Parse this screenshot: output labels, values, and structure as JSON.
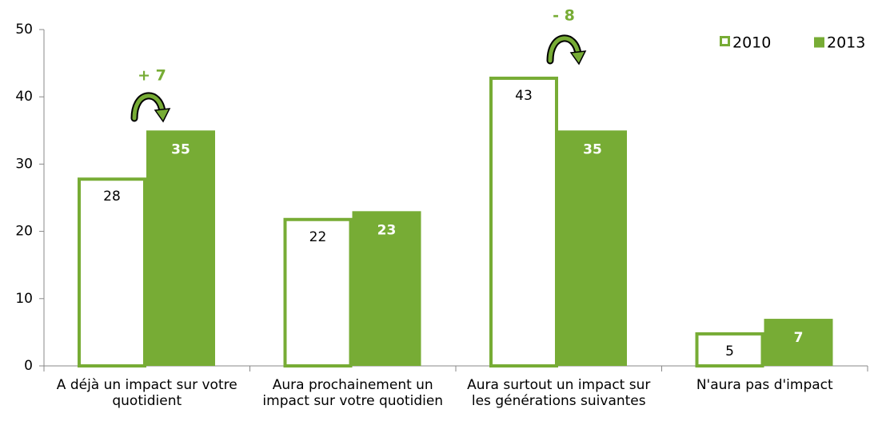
{
  "chart_data": {
    "type": "bar",
    "categories": [
      "A déjà un impact sur votre quotidient",
      "Aura prochainement un impact sur votre quotidien",
      "Aura surtout un impact sur les générations suivantes",
      "N'aura pas d'impact"
    ],
    "series": [
      {
        "name": "2010",
        "color": "#77ac35",
        "fill": "#ffffff",
        "values": [
          28,
          22,
          43,
          5
        ]
      },
      {
        "name": "2013",
        "color": "#77ac35",
        "fill": "#77ac35",
        "values": [
          35,
          23,
          35,
          7
        ]
      }
    ],
    "annotations": [
      "+ 7",
      "- 8"
    ],
    "ylim": [
      0,
      50
    ],
    "yticks": [
      0,
      10,
      20,
      30,
      40,
      50
    ],
    "grid": false,
    "legend": "top-right"
  }
}
